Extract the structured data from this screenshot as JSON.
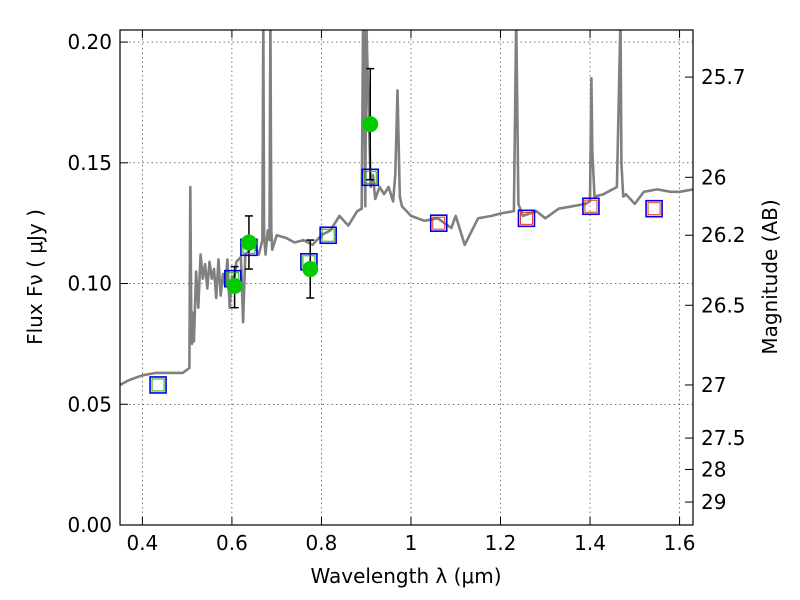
{
  "chart_data": {
    "type": "scatter",
    "xlabel": "Wavelength  λ (μm)",
    "ylabel": "Flux  Fν  ( μJy )",
    "ylabel_right": "Magnitude (AB)",
    "xlim": [
      0.35,
      1.63
    ],
    "ylim": [
      0.0,
      0.205
    ],
    "x_ticks": [
      0.4,
      0.6,
      0.8,
      1.0,
      1.2,
      1.4,
      1.6
    ],
    "x_tick_labels": [
      "0.4",
      "0.6",
      "0.8",
      "1",
      "1.2",
      "1.4",
      "1.6"
    ],
    "y_ticks": [
      0.0,
      0.05,
      0.1,
      0.15,
      0.2
    ],
    "y_tick_labels": [
      "0.00",
      "0.05",
      "0.10",
      "0.15",
      "0.20"
    ],
    "mag_ticks": [
      {
        "flux": 0.1855,
        "label": "25.7"
      },
      {
        "flux": 0.144,
        "label": "26"
      },
      {
        "flux": 0.12,
        "label": "26.2"
      },
      {
        "flux": 0.091,
        "label": "26.5"
      },
      {
        "flux": 0.058,
        "label": "27"
      },
      {
        "flux": 0.036,
        "label": "27.5"
      },
      {
        "flux": 0.023,
        "label": "28"
      },
      {
        "flux": 0.0095,
        "label": "29"
      }
    ],
    "grid": true,
    "colors": {
      "model_spectrum": "#808080",
      "observed_points": "#00cc00",
      "errorbars": "#000000",
      "model_photometry": "#0000dd",
      "hst_green": "#22aa22",
      "hst_red": "#ee3333"
    },
    "series": [
      {
        "style": "line",
        "x": [
          0.35,
          0.37,
          0.4,
          0.43,
          0.46,
          0.49,
          0.505,
          0.507,
          0.509,
          0.511,
          0.513,
          0.515,
          0.52,
          0.525,
          0.53,
          0.535,
          0.54,
          0.545,
          0.55,
          0.555,
          0.56,
          0.565,
          0.57,
          0.575,
          0.58,
          0.585,
          0.59,
          0.595,
          0.6,
          0.605,
          0.61,
          0.615,
          0.62,
          0.625,
          0.63,
          0.64,
          0.65,
          0.66,
          0.668,
          0.67,
          0.672,
          0.675,
          0.68,
          0.684,
          0.686,
          0.688,
          0.69,
          0.7,
          0.72,
          0.74,
          0.76,
          0.78,
          0.8,
          0.82,
          0.84,
          0.86,
          0.88,
          0.89,
          0.893,
          0.895,
          0.898,
          0.9,
          0.91,
          0.915,
          0.92,
          0.93,
          0.94,
          0.95,
          0.96,
          0.965,
          0.97,
          0.975,
          0.98,
          1.0,
          1.03,
          1.06,
          1.09,
          1.1,
          1.12,
          1.15,
          1.18,
          1.2,
          1.23,
          1.235,
          1.24,
          1.25,
          1.28,
          1.3,
          1.33,
          1.36,
          1.39,
          1.4,
          1.403,
          1.405,
          1.41,
          1.43,
          1.46,
          1.468,
          1.47,
          1.474,
          1.48,
          1.5,
          1.52,
          1.55,
          1.58,
          1.6,
          1.63
        ],
        "y": [
          0.058,
          0.06,
          0.062,
          0.063,
          0.063,
          0.063,
          0.065,
          0.14,
          0.088,
          0.075,
          0.088,
          0.076,
          0.105,
          0.09,
          0.112,
          0.102,
          0.108,
          0.098,
          0.109,
          0.102,
          0.106,
          0.094,
          0.11,
          0.095,
          0.104,
          0.099,
          0.11,
          0.09,
          0.103,
          0.102,
          0.109,
          0.11,
          0.111,
          0.084,
          0.112,
          0.114,
          0.116,
          0.112,
          0.118,
          0.21,
          0.12,
          0.112,
          0.122,
          0.118,
          0.21,
          0.122,
          0.114,
          0.12,
          0.119,
          0.117,
          0.118,
          0.116,
          0.12,
          0.122,
          0.128,
          0.124,
          0.13,
          0.131,
          0.21,
          0.21,
          0.132,
          0.21,
          0.14,
          0.145,
          0.135,
          0.14,
          0.137,
          0.14,
          0.134,
          0.145,
          0.18,
          0.136,
          0.132,
          0.128,
          0.126,
          0.127,
          0.123,
          0.128,
          0.116,
          0.127,
          0.128,
          0.129,
          0.13,
          0.21,
          0.133,
          0.128,
          0.13,
          0.127,
          0.131,
          0.132,
          0.133,
          0.134,
          0.185,
          0.155,
          0.136,
          0.137,
          0.14,
          0.21,
          0.15,
          0.136,
          0.137,
          0.133,
          0.138,
          0.139,
          0.138,
          0.138,
          0.139
        ]
      },
      {
        "style": "points",
        "x": [
          0.606,
          0.638,
          0.775,
          0.909
        ],
        "y": [
          0.099,
          0.117,
          0.106,
          0.166
        ],
        "yerr_low": [
          0.09,
          0.106,
          0.094,
          0.143
        ],
        "yerr_high": [
          0.107,
          0.128,
          0.118,
          0.189
        ]
      },
      {
        "style": "squares",
        "x": [
          0.435,
          0.602,
          0.638,
          0.772,
          0.815,
          0.909,
          1.062,
          1.258,
          1.402,
          1.543
        ],
        "y": [
          0.058,
          0.102,
          0.115,
          0.109,
          0.12,
          0.144,
          0.125,
          0.127,
          0.132,
          0.131
        ]
      }
    ]
  }
}
